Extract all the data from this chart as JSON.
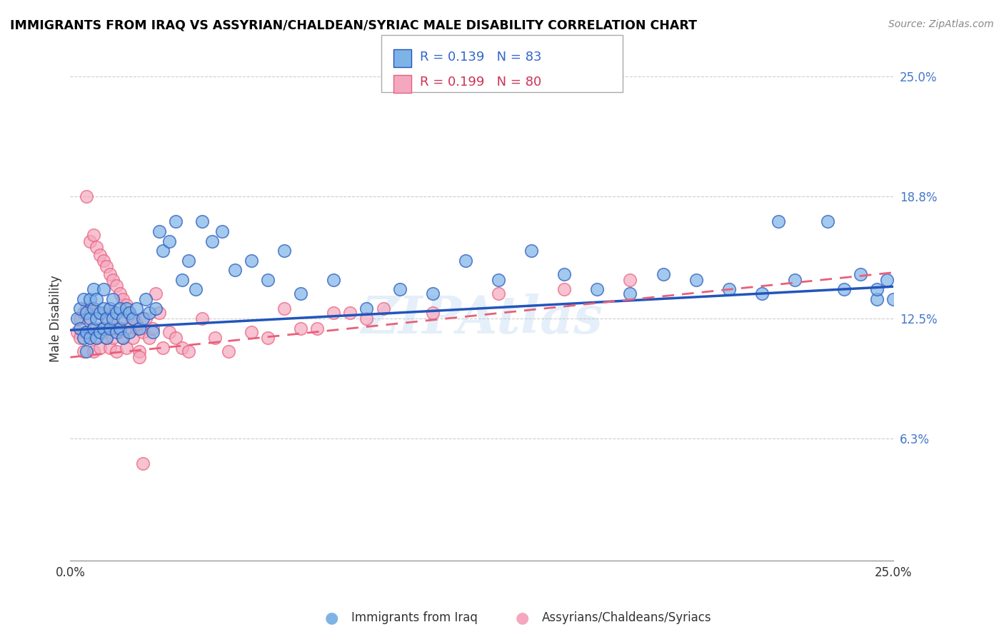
{
  "title": "IMMIGRANTS FROM IRAQ VS ASSYRIAN/CHALDEAN/SYRIAC MALE DISABILITY CORRELATION CHART",
  "source": "Source: ZipAtlas.com",
  "ylabel": "Male Disability",
  "xlim": [
    0.0,
    0.25
  ],
  "ylim": [
    0.0,
    0.25
  ],
  "xtick_vals": [
    0.0,
    0.05,
    0.1,
    0.15,
    0.2,
    0.25
  ],
  "xtick_labels_shown": [
    "0.0%",
    "",
    "",
    "",
    "",
    "25.0%"
  ],
  "ytick_vals_right": [
    0.25,
    0.188,
    0.125,
    0.063
  ],
  "ytick_labels_right": [
    "25.0%",
    "18.8%",
    "12.5%",
    "6.3%"
  ],
  "grid_color": "#cccccc",
  "background_color": "#ffffff",
  "blue_color": "#7EB3E8",
  "pink_color": "#F4A8C0",
  "blue_line_color": "#2255BB",
  "pink_line_color": "#E8607A",
  "legend_R_blue": "R = 0.139",
  "legend_N_blue": "N = 83",
  "legend_R_pink": "R = 0.199",
  "legend_N_pink": "N = 80",
  "series1_label": "Immigrants from Iraq",
  "series2_label": "Assyrians/Chaldeans/Syriacs",
  "blue_intercept": 0.119,
  "blue_slope": 0.09,
  "pink_intercept": 0.105,
  "pink_slope": 0.175,
  "blue_x": [
    0.002,
    0.003,
    0.003,
    0.004,
    0.004,
    0.005,
    0.005,
    0.005,
    0.006,
    0.006,
    0.006,
    0.007,
    0.007,
    0.007,
    0.008,
    0.008,
    0.008,
    0.009,
    0.009,
    0.01,
    0.01,
    0.01,
    0.011,
    0.011,
    0.012,
    0.012,
    0.013,
    0.013,
    0.014,
    0.014,
    0.015,
    0.015,
    0.016,
    0.016,
    0.017,
    0.018,
    0.018,
    0.019,
    0.02,
    0.021,
    0.022,
    0.023,
    0.024,
    0.025,
    0.026,
    0.027,
    0.028,
    0.03,
    0.032,
    0.034,
    0.036,
    0.038,
    0.04,
    0.043,
    0.046,
    0.05,
    0.055,
    0.06,
    0.065,
    0.07,
    0.08,
    0.09,
    0.1,
    0.11,
    0.12,
    0.13,
    0.14,
    0.15,
    0.16,
    0.17,
    0.18,
    0.19,
    0.2,
    0.21,
    0.215,
    0.22,
    0.23,
    0.235,
    0.24,
    0.245,
    0.245,
    0.248,
    0.25
  ],
  "blue_y": [
    0.125,
    0.12,
    0.13,
    0.115,
    0.135,
    0.128,
    0.118,
    0.108,
    0.125,
    0.135,
    0.115,
    0.14,
    0.13,
    0.12,
    0.125,
    0.115,
    0.135,
    0.128,
    0.118,
    0.13,
    0.12,
    0.14,
    0.125,
    0.115,
    0.13,
    0.12,
    0.125,
    0.135,
    0.128,
    0.118,
    0.13,
    0.12,
    0.125,
    0.115,
    0.13,
    0.128,
    0.118,
    0.125,
    0.13,
    0.12,
    0.125,
    0.135,
    0.128,
    0.118,
    0.13,
    0.17,
    0.16,
    0.165,
    0.175,
    0.145,
    0.155,
    0.14,
    0.175,
    0.165,
    0.17,
    0.15,
    0.155,
    0.145,
    0.16,
    0.138,
    0.145,
    0.13,
    0.14,
    0.138,
    0.155,
    0.145,
    0.16,
    0.148,
    0.14,
    0.138,
    0.148,
    0.145,
    0.14,
    0.138,
    0.175,
    0.145,
    0.175,
    0.14,
    0.148,
    0.135,
    0.14,
    0.145,
    0.135
  ],
  "pink_x": [
    0.002,
    0.003,
    0.003,
    0.004,
    0.004,
    0.005,
    0.005,
    0.006,
    0.006,
    0.007,
    0.007,
    0.007,
    0.008,
    0.008,
    0.009,
    0.009,
    0.01,
    0.01,
    0.011,
    0.011,
    0.012,
    0.012,
    0.013,
    0.013,
    0.014,
    0.014,
    0.015,
    0.015,
    0.016,
    0.017,
    0.017,
    0.018,
    0.019,
    0.02,
    0.021,
    0.022,
    0.023,
    0.024,
    0.025,
    0.026,
    0.027,
    0.028,
    0.03,
    0.032,
    0.034,
    0.036,
    0.04,
    0.044,
    0.048,
    0.055,
    0.065,
    0.075,
    0.085,
    0.095,
    0.11,
    0.13,
    0.15,
    0.17,
    0.06,
    0.07,
    0.08,
    0.09,
    0.005,
    0.006,
    0.007,
    0.008,
    0.009,
    0.01,
    0.011,
    0.012,
    0.013,
    0.014,
    0.015,
    0.016,
    0.017,
    0.018,
    0.019,
    0.02,
    0.021,
    0.022
  ],
  "pink_y": [
    0.118,
    0.125,
    0.115,
    0.128,
    0.108,
    0.118,
    0.13,
    0.115,
    0.125,
    0.12,
    0.13,
    0.108,
    0.128,
    0.115,
    0.12,
    0.11,
    0.118,
    0.128,
    0.115,
    0.125,
    0.12,
    0.11,
    0.128,
    0.115,
    0.12,
    0.108,
    0.118,
    0.125,
    0.115,
    0.12,
    0.11,
    0.128,
    0.115,
    0.12,
    0.108,
    0.118,
    0.125,
    0.115,
    0.12,
    0.138,
    0.128,
    0.11,
    0.118,
    0.115,
    0.11,
    0.108,
    0.125,
    0.115,
    0.108,
    0.118,
    0.13,
    0.12,
    0.128,
    0.13,
    0.128,
    0.138,
    0.14,
    0.145,
    0.115,
    0.12,
    0.128,
    0.125,
    0.188,
    0.165,
    0.168,
    0.162,
    0.158,
    0.155,
    0.152,
    0.148,
    0.145,
    0.142,
    0.138,
    0.135,
    0.132,
    0.128,
    0.125,
    0.122,
    0.105,
    0.05
  ]
}
